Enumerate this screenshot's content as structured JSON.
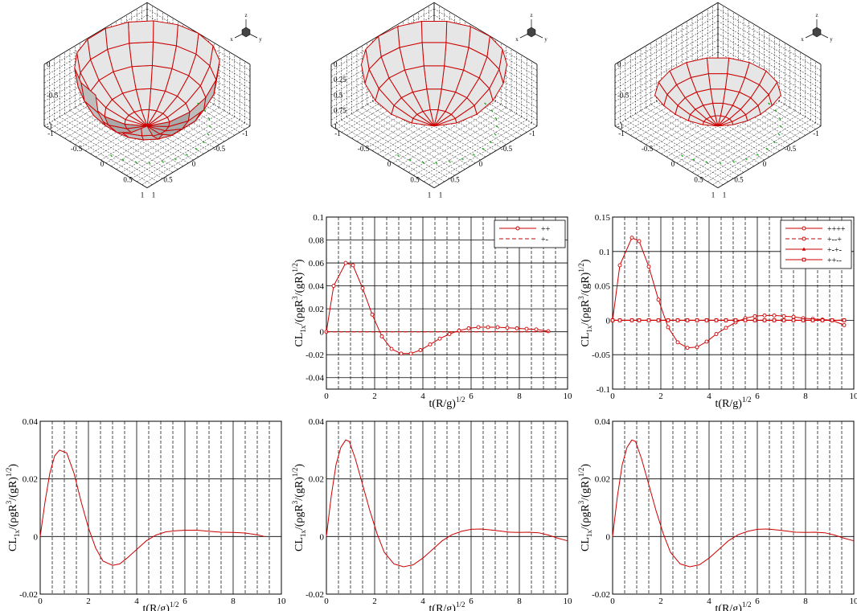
{
  "figure": {
    "triad_labels": {
      "x": "x",
      "y": "y",
      "z": "z"
    },
    "t_label_main": "t(R/g)",
    "t_label_sup": "1/2",
    "y_label_main": "CL",
    "y_label_sub": "1x",
    "y_label_mid": "/(ρgR",
    "y_label_exp3": "3",
    "y_label_tail": "/(gR)",
    "y_label_exp2": "1/2",
    "y_label_close": ")"
  },
  "chart_data": [
    {
      "type": "surface3d",
      "id": "bowl-full",
      "shape": "full hemisphere",
      "box_xticks": [
        "-1",
        "-0.5",
        "0",
        "0.5",
        "1"
      ],
      "box_yticks": [
        "1",
        "0.5",
        "0",
        "-0.5",
        "-1"
      ],
      "box_zticks": [
        "0",
        "-0.5",
        "-1"
      ],
      "surface_color": "#d9d9d9",
      "mesh_color": "#cc0000",
      "vector_color": "#00aa00"
    },
    {
      "type": "surface3d",
      "id": "bowl-half",
      "shape": "half hemisphere",
      "box_xticks": [
        "-1",
        "-0.5",
        "0",
        "0.5",
        "1"
      ],
      "box_yticks": [
        "1",
        "0.5",
        "0",
        "-0.5",
        "-1"
      ],
      "box_zticks": [
        "0",
        "0.25",
        "0.5",
        "0.75",
        "1"
      ],
      "surface_color": "#d9d9d9",
      "mesh_color": "#cc0000",
      "vector_color": "#00aa00"
    },
    {
      "type": "surface3d",
      "id": "bowl-shallow",
      "shape": "shallow segment",
      "box_xticks": [
        "-1",
        "-0.5",
        "0",
        "0.5",
        "1"
      ],
      "box_yticks": [
        "1",
        "0.5",
        "0",
        "-0.5",
        "-1"
      ],
      "box_zticks": [
        "0",
        "-0.5",
        "-1"
      ],
      "surface_color": "#d9d9d9",
      "mesh_color": "#cc0000",
      "vector_color": "#00aa00"
    },
    {
      "type": "line",
      "id": "cl-middle",
      "xlim": [
        0,
        10
      ],
      "ylim": [
        -0.05,
        0.1
      ],
      "xticks": [
        "0",
        "2",
        "4",
        "6",
        "8",
        "10"
      ],
      "yticks": [
        "-0.04",
        "-0.02",
        "0",
        "0.02",
        "0.04",
        "0.06",
        "0.08",
        "0.1"
      ],
      "ytick_values": [
        -0.04,
        -0.02,
        0,
        0.02,
        0.04,
        0.06,
        0.08,
        0.1
      ],
      "legend": "top-right",
      "series": [
        {
          "name": "++",
          "marker": "circle",
          "dashed": false,
          "x": [
            0,
            0.3,
            0.8,
            1.1,
            1.5,
            1.9,
            2.3,
            2.7,
            3.1,
            3.5,
            3.9,
            4.3,
            4.7,
            5.1,
            5.5,
            5.9,
            6.3,
            6.7,
            7.1,
            7.5,
            7.9,
            8.3,
            8.7,
            9.2
          ],
          "y": [
            0,
            0.04,
            0.06,
            0.058,
            0.038,
            0.015,
            -0.004,
            -0.015,
            -0.019,
            -0.019,
            -0.016,
            -0.011,
            -0.006,
            -0.002,
            0.001,
            0.003,
            0.004,
            0.004,
            0.004,
            0.0035,
            0.003,
            0.0025,
            0.002,
            0.0005
          ]
        },
        {
          "name": "+-",
          "marker": "none",
          "dashed": true,
          "x": [
            0,
            9.3
          ],
          "y": [
            0,
            0
          ]
        }
      ]
    },
    {
      "type": "line",
      "id": "cl-right",
      "xlim": [
        0,
        10
      ],
      "ylim": [
        -0.1,
        0.15
      ],
      "xticks": [
        "0",
        "2",
        "4",
        "6",
        "8",
        "10"
      ],
      "yticks": [
        "-0.1",
        "-0.05",
        "0",
        "0.05",
        "0.1",
        "0.15"
      ],
      "ytick_values": [
        -0.1,
        -0.05,
        0,
        0.05,
        0.1,
        0.15
      ],
      "legend": "top-right",
      "series": [
        {
          "name": "++++",
          "marker": "circle",
          "dashed": false,
          "x": [
            0,
            0.3,
            0.8,
            1.1,
            1.5,
            1.9,
            2.3,
            2.7,
            3.1,
            3.5,
            3.9,
            4.3,
            4.7,
            5.1,
            5.5,
            5.9,
            6.3,
            6.7,
            7.1,
            7.5,
            7.9,
            8.3,
            8.7,
            9.1,
            9.6
          ],
          "y": [
            0,
            0.08,
            0.12,
            0.115,
            0.078,
            0.03,
            -0.01,
            -0.032,
            -0.04,
            -0.039,
            -0.031,
            -0.02,
            -0.011,
            -0.003,
            0.003,
            0.006,
            0.007,
            0.007,
            0.006,
            0.005,
            0.003,
            0.002,
            0.001,
            0,
            -0.007
          ]
        },
        {
          "name": "+--+",
          "marker": "circle",
          "dashed": true,
          "x": [
            0,
            0.3,
            0.8,
            1.1,
            1.5,
            1.9,
            2.3,
            2.7,
            3.1,
            3.5,
            3.9,
            4.3,
            4.7,
            5.1,
            5.5,
            5.9,
            6.3,
            6.7,
            7.1,
            7.5,
            7.9,
            8.3,
            8.7,
            9.1,
            9.6
          ],
          "y": [
            0,
            0,
            0,
            0,
            0,
            0,
            0,
            0,
            0,
            0,
            0,
            0,
            0,
            0,
            0,
            0,
            0,
            0,
            0,
            0,
            0,
            0,
            0,
            0,
            0
          ]
        },
        {
          "name": "+-+-",
          "marker": "triangle",
          "dashed": false,
          "x": [
            0,
            0.3,
            0.8,
            1.1,
            1.5,
            1.9,
            2.3,
            2.7,
            3.1,
            3.5,
            3.9,
            4.3,
            4.7,
            5.1,
            5.5,
            5.9,
            6.3,
            6.7,
            7.1,
            7.5,
            7.9,
            8.3,
            8.7,
            9.1,
            9.6
          ],
          "y": [
            0,
            0,
            0,
            0,
            0,
            0,
            0,
            0,
            0,
            0,
            0,
            0,
            0,
            0,
            0,
            0,
            0,
            0,
            0,
            0,
            0,
            0,
            0,
            0,
            0
          ]
        },
        {
          "name": "++--",
          "marker": "square",
          "dashed": false,
          "x": [
            0,
            0.3,
            0.8,
            1.1,
            1.5,
            1.9,
            2.3,
            2.7,
            3.1,
            3.5,
            3.9,
            4.3,
            4.7,
            5.1,
            5.5,
            5.9,
            6.3,
            6.7,
            7.1,
            7.5,
            7.9,
            8.3,
            8.7,
            9.1,
            9.6
          ],
          "y": [
            0,
            0,
            0,
            0,
            0,
            0,
            0,
            0,
            0,
            0,
            0,
            0,
            0,
            0,
            0,
            0,
            0,
            0,
            0,
            0,
            0,
            0,
            0,
            0,
            0
          ]
        }
      ]
    },
    {
      "type": "line",
      "id": "cl-bottom-left",
      "xlim": [
        0,
        10
      ],
      "ylim": [
        -0.02,
        0.04
      ],
      "xticks": [
        "0",
        "2",
        "4",
        "6",
        "8",
        "10"
      ],
      "yticks": [
        "-0.02",
        "0",
        "0.02",
        "0.04"
      ],
      "ytick_values": [
        -0.02,
        0,
        0.02,
        0.04
      ],
      "series": [
        {
          "marker": "none",
          "dashed": false,
          "x": [
            0,
            0.2,
            0.4,
            0.6,
            0.8,
            1.1,
            1.4,
            1.7,
            2.0,
            2.3,
            2.6,
            3.0,
            3.3,
            3.6,
            4.0,
            4.4,
            4.8,
            5.2,
            5.6,
            6.0,
            6.5,
            7.0,
            7.5,
            8.0,
            8.5,
            9.0,
            9.3
          ],
          "y": [
            0,
            0.012,
            0.022,
            0.028,
            0.03,
            0.029,
            0.022,
            0.012,
            0.003,
            -0.004,
            -0.0085,
            -0.01,
            -0.0095,
            -0.0075,
            -0.0045,
            -0.0015,
            0.0005,
            0.0016,
            0.002,
            0.0022,
            0.0022,
            0.0018,
            0.0015,
            0.0014,
            0.0012,
            0.0006,
            0
          ]
        }
      ]
    },
    {
      "type": "line",
      "id": "cl-bottom-middle",
      "xlim": [
        0,
        10
      ],
      "ylim": [
        -0.02,
        0.04
      ],
      "xticks": [
        "0",
        "2",
        "4",
        "6",
        "8",
        "10"
      ],
      "yticks": [
        "-0.02",
        "0",
        "0.02",
        "0.04"
      ],
      "ytick_values": [
        -0.02,
        0,
        0.02,
        0.04
      ],
      "series": [
        {
          "marker": "none",
          "dashed": false,
          "x": [
            0,
            0.2,
            0.4,
            0.6,
            0.8,
            0.95,
            1.2,
            1.5,
            1.8,
            2.1,
            2.4,
            2.8,
            3.2,
            3.6,
            4.0,
            4.4,
            4.8,
            5.2,
            5.6,
            6.0,
            6.4,
            6.8,
            7.2,
            7.6,
            8.0,
            8.4,
            8.8,
            9.2,
            9.6,
            10
          ],
          "y": [
            0,
            0.014,
            0.025,
            0.031,
            0.0335,
            0.033,
            0.027,
            0.018,
            0.009,
            0.001,
            -0.0055,
            -0.0095,
            -0.0105,
            -0.0098,
            -0.0075,
            -0.0045,
            -0.0015,
            0.0006,
            0.0018,
            0.0025,
            0.0026,
            0.0023,
            0.0019,
            0.0015,
            0.0014,
            0.0015,
            0.0013,
            0.0005,
            -0.0006,
            -0.0015
          ]
        }
      ]
    },
    {
      "type": "line",
      "id": "cl-bottom-right",
      "xlim": [
        0,
        10
      ],
      "ylim": [
        -0.02,
        0.04
      ],
      "xticks": [
        "0",
        "2",
        "4",
        "6",
        "8",
        "10"
      ],
      "yticks": [
        "-0.02",
        "0",
        "0.02",
        "0.04"
      ],
      "ytick_values": [
        -0.02,
        0,
        0.02,
        0.04
      ],
      "series": [
        {
          "marker": "none",
          "dashed": false,
          "x": [
            0,
            0.2,
            0.4,
            0.6,
            0.8,
            0.95,
            1.2,
            1.5,
            1.8,
            2.1,
            2.4,
            2.8,
            3.2,
            3.6,
            4.0,
            4.4,
            4.8,
            5.2,
            5.6,
            6.0,
            6.4,
            6.8,
            7.2,
            7.6,
            8.0,
            8.4,
            8.8,
            9.2,
            9.6,
            10
          ],
          "y": [
            0,
            0.014,
            0.025,
            0.031,
            0.0335,
            0.033,
            0.027,
            0.018,
            0.009,
            0.001,
            -0.0055,
            -0.0095,
            -0.0105,
            -0.0098,
            -0.0075,
            -0.0045,
            -0.0015,
            0.0006,
            0.0018,
            0.0025,
            0.0026,
            0.0023,
            0.0019,
            0.0015,
            0.0014,
            0.0015,
            0.0013,
            0.0005,
            -0.0006,
            -0.0015
          ]
        }
      ]
    }
  ]
}
